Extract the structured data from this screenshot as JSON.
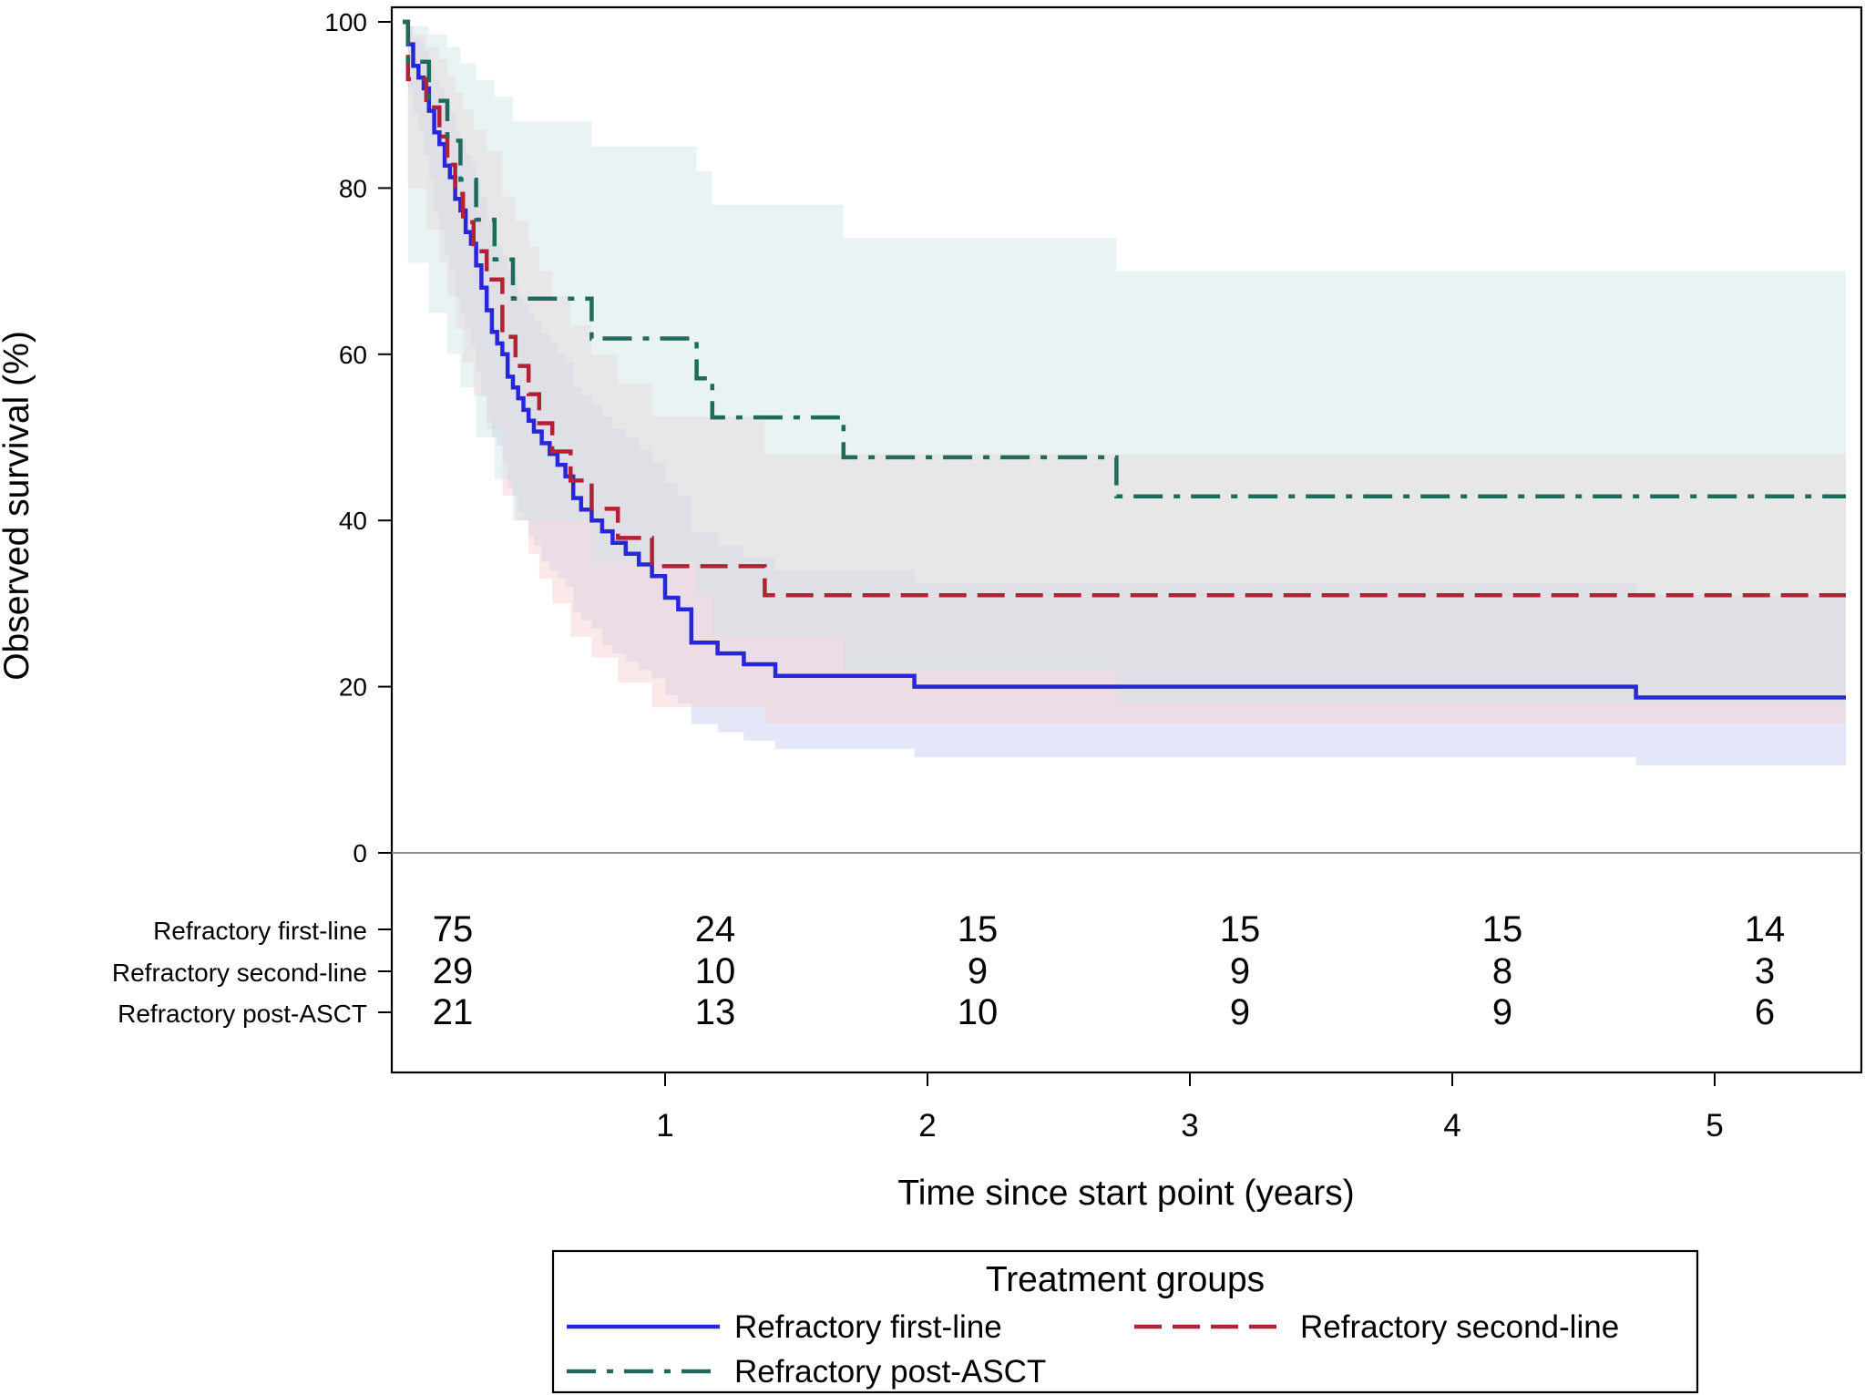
{
  "chart_data": {
    "type": "line",
    "subtype": "kaplan-meier-step",
    "xlabel": "Time since start point (years)",
    "ylabel": "Observed survival (%)",
    "xlim": [
      -0.05,
      5.5
    ],
    "ylim": [
      0,
      100
    ],
    "x_ticks": [
      1,
      2,
      3,
      4,
      5
    ],
    "y_ticks": [
      0,
      20,
      40,
      60,
      80,
      100
    ],
    "grid": false,
    "reference_line_y": 0,
    "legend": {
      "title": "Treatment groups",
      "position": "bottom"
    },
    "series": [
      {
        "name": "Refractory first-line",
        "color": "#2727d9",
        "band_color": "#c3c9f0",
        "dash": "solid",
        "x": [
          0,
          0.02,
          0.04,
          0.06,
          0.08,
          0.1,
          0.12,
          0.14,
          0.16,
          0.18,
          0.2,
          0.22,
          0.24,
          0.26,
          0.28,
          0.3,
          0.32,
          0.34,
          0.36,
          0.38,
          0.4,
          0.42,
          0.44,
          0.46,
          0.48,
          0.5,
          0.53,
          0.56,
          0.59,
          0.62,
          0.65,
          0.68,
          0.72,
          0.76,
          0.8,
          0.85,
          0.9,
          0.95,
          1.0,
          1.05,
          1.1,
          1.2,
          1.3,
          1.42,
          1.5,
          1.6,
          1.75,
          1.95,
          2.4,
          3.0,
          4.0,
          4.7,
          5.5
        ],
        "y": [
          100,
          97.3,
          94.7,
          93.3,
          92,
          89.3,
          86.7,
          85.3,
          82.7,
          81.3,
          78.7,
          77.3,
          74.7,
          73.3,
          70.7,
          68,
          65.3,
          62.7,
          61.3,
          60,
          57.3,
          56,
          54.7,
          53.3,
          52,
          50.7,
          49.3,
          48,
          46.7,
          45.3,
          42.7,
          41.3,
          40,
          38.7,
          37.3,
          36,
          34.7,
          33.3,
          30.7,
          29.3,
          25.3,
          24,
          22.7,
          21.3,
          21.3,
          21.3,
          21.3,
          20,
          20,
          20,
          20,
          18.7,
          18.7
        ],
        "ci_lower": [
          100,
          92,
          89,
          87,
          84,
          81,
          77,
          75,
          72,
          70,
          67,
          65,
          63,
          61,
          58,
          55,
          52,
          50,
          49,
          47,
          44,
          43,
          41,
          40,
          38,
          37,
          35,
          34,
          33,
          32,
          29,
          28,
          27,
          25,
          24,
          23,
          22,
          21,
          19,
          18,
          15.5,
          14.5,
          13.5,
          12.5,
          12.5,
          12.5,
          12.5,
          11.5,
          11.5,
          11.5,
          11.5,
          10.5,
          10.5
        ],
        "ci_upper": [
          100,
          99.5,
          98,
          97.5,
          96.5,
          95,
          93,
          92,
          90,
          89,
          87,
          86,
          84,
          83,
          81,
          79,
          76,
          74,
          73,
          72,
          70,
          69,
          67,
          66,
          65,
          64,
          62.5,
          61.5,
          60,
          59,
          56,
          55,
          54,
          52.5,
          51,
          50,
          48.5,
          47,
          44.5,
          43,
          38.5,
          37,
          35.5,
          34,
          34,
          34,
          34,
          32.5,
          32.5,
          32.5,
          32.5,
          31,
          31
        ]
      },
      {
        "name": "Refractory second-line",
        "color": "#b22234",
        "band_color": "#f6cfd1",
        "dash": "dashed",
        "x": [
          0,
          0.02,
          0.09,
          0.14,
          0.17,
          0.2,
          0.23,
          0.27,
          0.32,
          0.38,
          0.43,
          0.48,
          0.52,
          0.57,
          0.64,
          0.72,
          0.82,
          0.95,
          1.1,
          1.22,
          1.38,
          2.0,
          3.0,
          4.0,
          5.5
        ],
        "y": [
          100,
          93.1,
          89.7,
          86.2,
          82.8,
          79.3,
          75.9,
          72.4,
          69,
          62.1,
          58.6,
          55.2,
          51.7,
          48.3,
          44.8,
          41.4,
          37.9,
          34.5,
          34.5,
          34.5,
          31,
          31,
          31,
          31,
          31
        ],
        "ci_lower": [
          100,
          80,
          75,
          71,
          67,
          63,
          59,
          55,
          51,
          43,
          40,
          36,
          33,
          30,
          26,
          23.5,
          20.5,
          17.5,
          17.5,
          17.5,
          15.5,
          15.5,
          15.5,
          15.5,
          15.5
        ],
        "ci_upper": [
          100,
          98.5,
          97,
          95.5,
          93.5,
          91.5,
          89.5,
          87,
          84.5,
          79,
          76,
          73,
          70,
          67,
          63.5,
          60,
          56.5,
          52.5,
          52.5,
          52.5,
          48,
          48,
          48,
          48,
          48
        ]
      },
      {
        "name": "Refractory post-ASCT",
        "color": "#1e6b5c",
        "band_color": "#cfe5e6",
        "dash": "dashdot",
        "x": [
          0,
          0.02,
          0.1,
          0.17,
          0.22,
          0.28,
          0.35,
          0.42,
          0.48,
          0.62,
          0.72,
          1.0,
          1.12,
          1.18,
          1.3,
          1.55,
          1.68,
          2.0,
          2.72,
          3.0,
          4.0,
          5.5
        ],
        "y": [
          100,
          95.2,
          90.5,
          85.7,
          81,
          76.2,
          71.4,
          66.7,
          66.7,
          66.7,
          61.9,
          61.9,
          57.1,
          52.4,
          52.4,
          52.4,
          47.6,
          47.6,
          42.9,
          42.9,
          42.9,
          42.9
        ],
        "ci_lower": [
          100,
          71,
          65,
          60,
          56,
          50,
          45,
          40,
          40,
          40,
          35,
          35,
          31,
          26,
          26,
          26,
          22,
          22,
          18,
          18,
          18,
          18
        ],
        "ci_upper": [
          100,
          99.5,
          98.5,
          97,
          95,
          93,
          91,
          88,
          88,
          88,
          85,
          85,
          82,
          78,
          78,
          78,
          74,
          74,
          70,
          70,
          70,
          70
        ]
      }
    ],
    "risk_table": {
      "rows": [
        {
          "label": "Refractory first-line",
          "counts": [
            "75",
            "24",
            "15",
            "15",
            "15",
            "14"
          ]
        },
        {
          "label": "Refractory second-line",
          "counts": [
            "29",
            "10",
            "9",
            "9",
            "8",
            "3"
          ]
        },
        {
          "label": "Refractory post-ASCT",
          "counts": [
            "21",
            "13",
            "10",
            "9",
            "9",
            "6"
          ]
        }
      ]
    }
  }
}
